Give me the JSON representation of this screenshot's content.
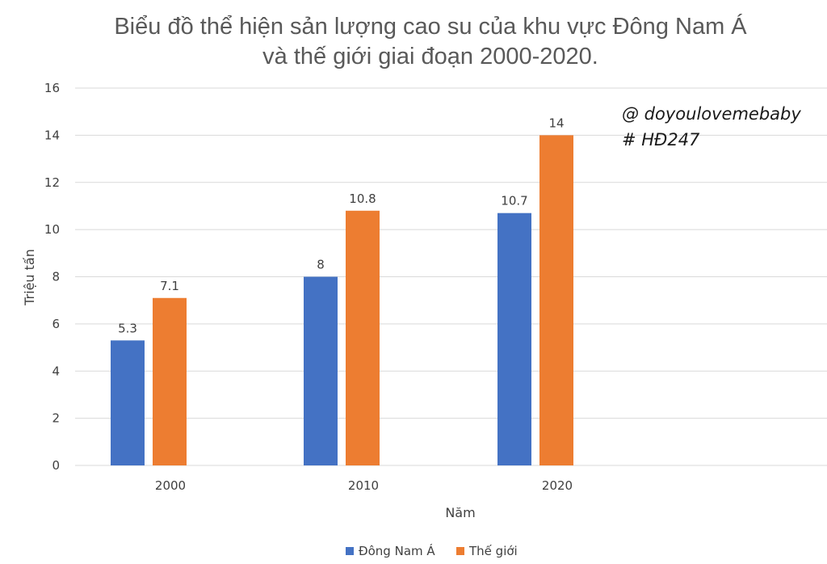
{
  "chart_data": {
    "type": "bar",
    "title_lines": [
      "Biểu đồ thể hiện sản lượng cao su của khu vực Đông Nam Á",
      "và thế giới giai đoạn 2000-2020."
    ],
    "xlabel": "Năm",
    "ylabel": "Triệu tấn",
    "categories": [
      "2000",
      "2010",
      "2020"
    ],
    "ylim": [
      0,
      16
    ],
    "yticks": [
      0,
      2,
      4,
      6,
      8,
      10,
      12,
      14,
      16
    ],
    "grid": true,
    "legend_position": "bottom",
    "series": [
      {
        "name": "Đông Nam Á",
        "color": "#4472c4",
        "values": [
          5.3,
          8,
          10.7
        ],
        "labels": [
          "5.3",
          "8",
          "10.7"
        ]
      },
      {
        "name": "Thế giới",
        "color": "#ed7d31",
        "values": [
          7.1,
          10.8,
          14
        ],
        "labels": [
          "7.1",
          "10.8",
          "14"
        ]
      }
    ],
    "annotations": [
      "@ doyoulovemebaby",
      "# HĐ247"
    ]
  }
}
